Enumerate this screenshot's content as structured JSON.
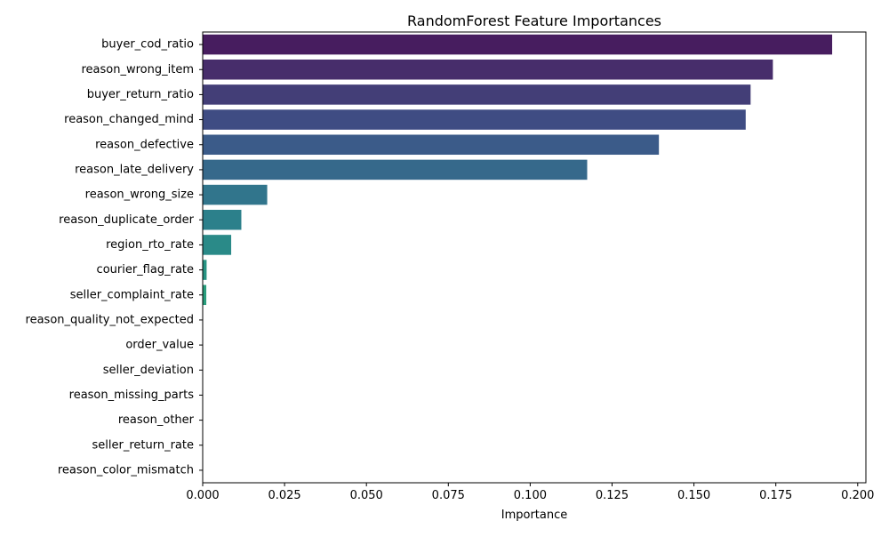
{
  "chart_data": {
    "type": "bar",
    "orientation": "horizontal",
    "title": "RandomForest Feature Importances",
    "xlabel": "Importance",
    "ylabel": "",
    "xlim": [
      0,
      0.2025
    ],
    "xticks": [
      0.0,
      0.025,
      0.05,
      0.075,
      0.1,
      0.125,
      0.15,
      0.175,
      0.2
    ],
    "xtick_labels": [
      "0.000",
      "0.025",
      "0.050",
      "0.075",
      "0.100",
      "0.125",
      "0.150",
      "0.175",
      "0.200"
    ],
    "grid": false,
    "legend": "none",
    "categories": [
      "buyer_cod_ratio",
      "reason_wrong_item",
      "buyer_return_ratio",
      "reason_changed_mind",
      "reason_defective",
      "reason_late_delivery",
      "reason_wrong_size",
      "reason_duplicate_order",
      "region_rto_rate",
      "courier_flag_rate",
      "seller_complaint_rate",
      "reason_quality_not_expected",
      "order_value",
      "seller_deviation",
      "reason_missing_parts",
      "reason_other",
      "seller_return_rate",
      "reason_color_mismatch"
    ],
    "values": [
      0.1922,
      0.1741,
      0.1673,
      0.1658,
      0.1393,
      0.1174,
      0.0197,
      0.0118,
      0.0087,
      0.0012,
      0.0011,
      0.0,
      0.0,
      0.0,
      0.0,
      0.0,
      0.0,
      0.0
    ],
    "colors": [
      "#471d5f",
      "#472d6b",
      "#433e77",
      "#3f4c83",
      "#3b5b89",
      "#36698b",
      "#31758c",
      "#2c808b",
      "#2a8a88",
      "#279483",
      "#299e7d",
      "#32a875",
      "#40b16d",
      "#55ba61",
      "#6dc252",
      "#89c943",
      "#a4cf36",
      "#c0d42b"
    ]
  }
}
